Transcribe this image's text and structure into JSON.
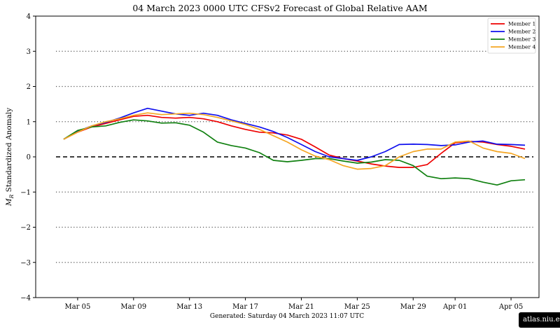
{
  "chart_data": {
    "type": "line",
    "title": "04  March  2023 0000 UTC   CFSv2 Forecast of Global Relative AAM",
    "ylabel": "M_R Standardized Anomaly",
    "ylabel_main": "M",
    "ylabel_sub": "R",
    "ylabel_rest": " Standardized Anomaly",
    "xlabel": "",
    "footer": "Generated: Saturday  04  March  2023  11:07 UTC",
    "ylim": [
      -4,
      4
    ],
    "xlim": [
      "2023-03-02",
      "2023-04-07"
    ],
    "yticks": [
      {
        "value": 4,
        "label": "4"
      },
      {
        "value": 3,
        "label": "3"
      },
      {
        "value": 2,
        "label": "2"
      },
      {
        "value": 1,
        "label": "1"
      },
      {
        "value": 0,
        "label": "0"
      },
      {
        "value": -1,
        "label": "−1"
      },
      {
        "value": -2,
        "label": "−2"
      },
      {
        "value": -3,
        "label": "−3"
      },
      {
        "value": -4,
        "label": "−4"
      }
    ],
    "xticks": [
      {
        "date": "2023-03-05",
        "label": "Mar 05"
      },
      {
        "date": "2023-03-09",
        "label": "Mar 09"
      },
      {
        "date": "2023-03-13",
        "label": "Mar 13"
      },
      {
        "date": "2023-03-17",
        "label": "Mar 17"
      },
      {
        "date": "2023-03-21",
        "label": "Mar 21"
      },
      {
        "date": "2023-03-25",
        "label": "Mar 25"
      },
      {
        "date": "2023-03-29",
        "label": "Mar 29"
      },
      {
        "date": "2023-04-01",
        "label": "Apr 01"
      },
      {
        "date": "2023-04-05",
        "label": "Apr 05"
      }
    ],
    "gridlines_dotted_y": [
      3,
      2,
      1,
      -1,
      -2,
      -3
    ],
    "zero_line": "dashed",
    "legend_position": "top-right",
    "x": [
      "2023-03-04",
      "2023-03-05",
      "2023-03-06",
      "2023-03-07",
      "2023-03-08",
      "2023-03-09",
      "2023-03-10",
      "2023-03-11",
      "2023-03-12",
      "2023-03-13",
      "2023-03-14",
      "2023-03-15",
      "2023-03-16",
      "2023-03-17",
      "2023-03-18",
      "2023-03-19",
      "2023-03-20",
      "2023-03-21",
      "2023-03-22",
      "2023-03-23",
      "2023-03-24",
      "2023-03-25",
      "2023-03-26",
      "2023-03-27",
      "2023-03-28",
      "2023-03-29",
      "2023-03-30",
      "2023-03-31",
      "2023-04-01",
      "2023-04-02",
      "2023-04-03",
      "2023-04-04",
      "2023-04-05",
      "2023-04-06"
    ],
    "series": [
      {
        "name": "Member 1",
        "color": "#ee0000",
        "values": [
          0.5,
          0.7,
          0.85,
          0.95,
          1.05,
          1.15,
          1.18,
          1.12,
          1.1,
          1.12,
          1.08,
          1.0,
          0.88,
          0.78,
          0.7,
          0.68,
          0.62,
          0.5,
          0.28,
          0.05,
          -0.05,
          -0.12,
          -0.2,
          -0.26,
          -0.3,
          -0.3,
          -0.22,
          0.1,
          0.4,
          0.44,
          0.42,
          0.35,
          0.3,
          0.22
        ]
      },
      {
        "name": "Member 2",
        "color": "#1010ee",
        "values": [
          0.5,
          0.72,
          0.88,
          0.98,
          1.1,
          1.25,
          1.38,
          1.3,
          1.22,
          1.18,
          1.24,
          1.18,
          1.05,
          0.95,
          0.85,
          0.72,
          0.55,
          0.35,
          0.15,
          0.0,
          -0.05,
          -0.1,
          0.0,
          0.15,
          0.35,
          0.36,
          0.35,
          0.32,
          0.34,
          0.42,
          0.45,
          0.36,
          0.35,
          0.33
        ]
      },
      {
        "name": "Member 3",
        "color": "#108010",
        "values": [
          0.5,
          0.75,
          0.85,
          0.88,
          0.98,
          1.05,
          1.02,
          0.96,
          0.97,
          0.9,
          0.7,
          0.42,
          0.32,
          0.25,
          0.12,
          -0.1,
          -0.14,
          -0.1,
          -0.05,
          -0.05,
          -0.12,
          -0.18,
          -0.15,
          -0.08,
          -0.1,
          -0.25,
          -0.55,
          -0.62,
          -0.6,
          -0.62,
          -0.72,
          -0.8,
          -0.68,
          -0.65
        ]
      },
      {
        "name": "Member 4",
        "color": "#f5a623",
        "values": [
          0.5,
          0.7,
          0.88,
          1.0,
          1.08,
          1.18,
          1.25,
          1.2,
          1.22,
          1.24,
          1.2,
          1.12,
          1.02,
          0.92,
          0.78,
          0.6,
          0.42,
          0.2,
          0.02,
          -0.08,
          -0.25,
          -0.35,
          -0.33,
          -0.25,
          0.0,
          0.15,
          0.22,
          0.22,
          0.42,
          0.45,
          0.25,
          0.15,
          0.1,
          -0.05
        ]
      }
    ]
  },
  "watermark": "atlas.niu.edu"
}
